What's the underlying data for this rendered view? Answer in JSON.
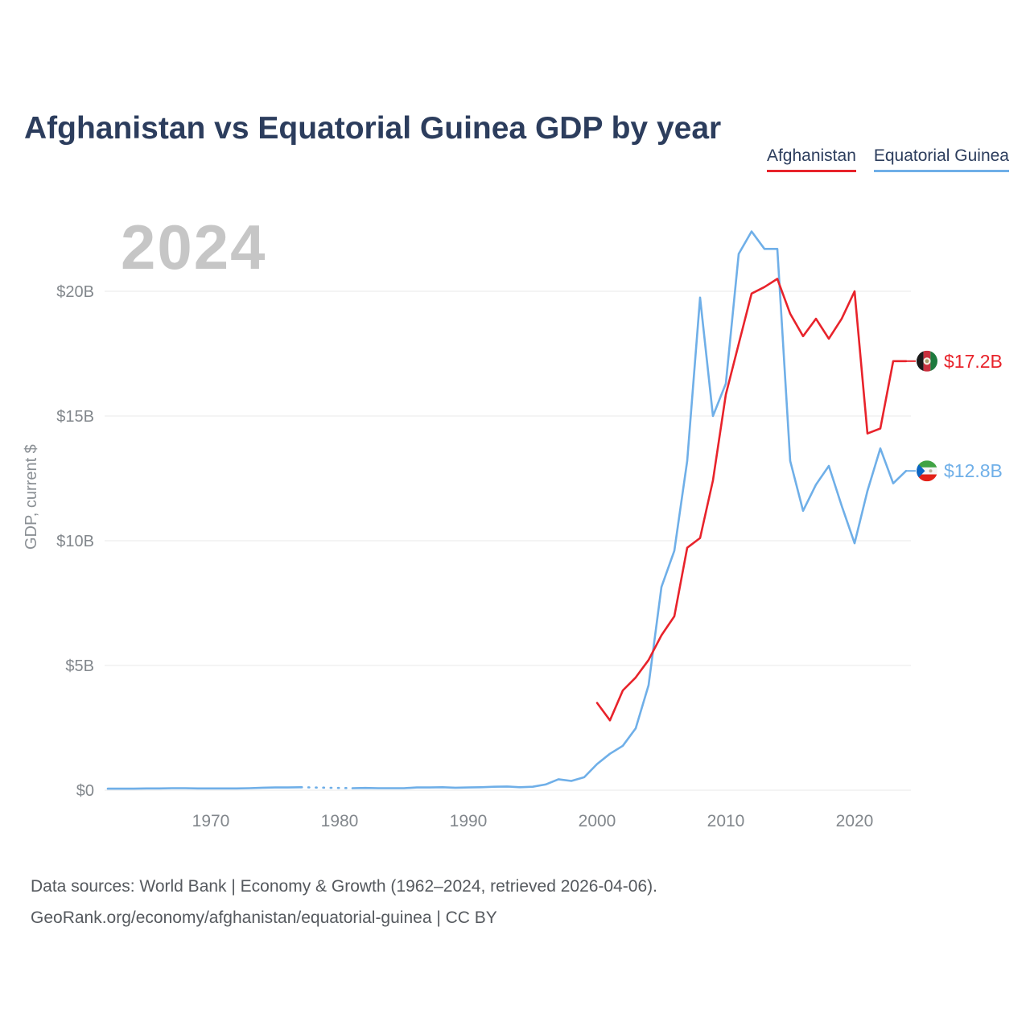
{
  "title": "Afghanistan vs Equatorial Guinea GDP by year",
  "watermark": "2024",
  "legend": [
    {
      "label": "Afghanistan",
      "color": "#e8232b"
    },
    {
      "label": "Equatorial Guinea",
      "color": "#6fafe8"
    }
  ],
  "footer": {
    "line1": "Data sources: World Bank | Economy & Growth (1962–2024, retrieved 2026-04-06).",
    "line2": "GeoRank.org/economy/afghanistan/equatorial-guinea | CC BY"
  },
  "chart_data": {
    "type": "line",
    "title": "Afghanistan vs Equatorial Guinea GDP by year",
    "xlabel": "",
    "ylabel": "GDP, current $",
    "units": "billions of current US$",
    "xlim": [
      1962,
      2024
    ],
    "ylim": [
      0,
      23
    ],
    "grid": true,
    "legend_position": "top-right",
    "x_ticks": [
      1970,
      1980,
      1990,
      2000,
      2010,
      2020
    ],
    "y_ticks": [
      {
        "value": 0,
        "label": "$0"
      },
      {
        "value": 5,
        "label": "$5B"
      },
      {
        "value": 10,
        "label": "$10B"
      },
      {
        "value": 15,
        "label": "$15B"
      },
      {
        "value": 20,
        "label": "$20B"
      }
    ],
    "series": [
      {
        "id": "equatorial-guinea",
        "name": "Equatorial Guinea",
        "color": "#6fafe8",
        "flag": "equatorial-guinea",
        "end_label": "$12.8B",
        "end_value": 12.8,
        "x": [
          1962,
          1963,
          1964,
          1965,
          1966,
          1967,
          1968,
          1969,
          1970,
          1971,
          1972,
          1973,
          1974,
          1975,
          1976,
          1977,
          1978,
          1979,
          1980,
          1981,
          1982,
          1983,
          1984,
          1985,
          1986,
          1987,
          1988,
          1989,
          1990,
          1991,
          1992,
          1993,
          1994,
          1995,
          1996,
          1997,
          1998,
          1999,
          2000,
          2001,
          2002,
          2003,
          2004,
          2005,
          2006,
          2007,
          2008,
          2009,
          2010,
          2011,
          2012,
          2013,
          2014,
          2015,
          2016,
          2017,
          2018,
          2019,
          2020,
          2021,
          2022,
          2023,
          2024
        ],
        "values": [
          0.06,
          0.06,
          0.06,
          0.07,
          0.07,
          0.08,
          0.08,
          0.07,
          0.07,
          0.07,
          0.07,
          0.08,
          0.1,
          0.11,
          0.11,
          0.12,
          null,
          null,
          null,
          0.08,
          0.09,
          0.08,
          0.08,
          0.08,
          0.11,
          0.11,
          0.12,
          0.1,
          0.11,
          0.12,
          0.14,
          0.15,
          0.12,
          0.14,
          0.23,
          0.44,
          0.37,
          0.52,
          1.05,
          1.46,
          1.78,
          2.48,
          4.21,
          8.15,
          9.6,
          13.2,
          19.75,
          15.0,
          16.3,
          21.5,
          22.4,
          21.7,
          21.7,
          13.2,
          11.2,
          12.25,
          13.0,
          11.4,
          9.9,
          12.0,
          13.7,
          12.3,
          12.8
        ]
      },
      {
        "id": "afghanistan",
        "name": "Afghanistan",
        "color": "#e8232b",
        "flag": "afghanistan",
        "end_label": "$17.2B",
        "end_value": 17.2,
        "x": [
          2000,
          2001,
          2002,
          2003,
          2004,
          2005,
          2006,
          2007,
          2008,
          2009,
          2010,
          2011,
          2012,
          2013,
          2014,
          2015,
          2016,
          2017,
          2018,
          2019,
          2020,
          2021,
          2022,
          2023,
          2024
        ],
        "values": [
          3.5,
          2.8,
          4.0,
          4.52,
          5.22,
          6.21,
          6.97,
          9.72,
          10.11,
          12.42,
          15.86,
          17.89,
          19.91,
          20.17,
          20.5,
          19.1,
          18.2,
          18.9,
          18.1,
          18.9,
          20.0,
          14.3,
          14.5,
          17.2,
          17.2
        ]
      }
    ]
  }
}
